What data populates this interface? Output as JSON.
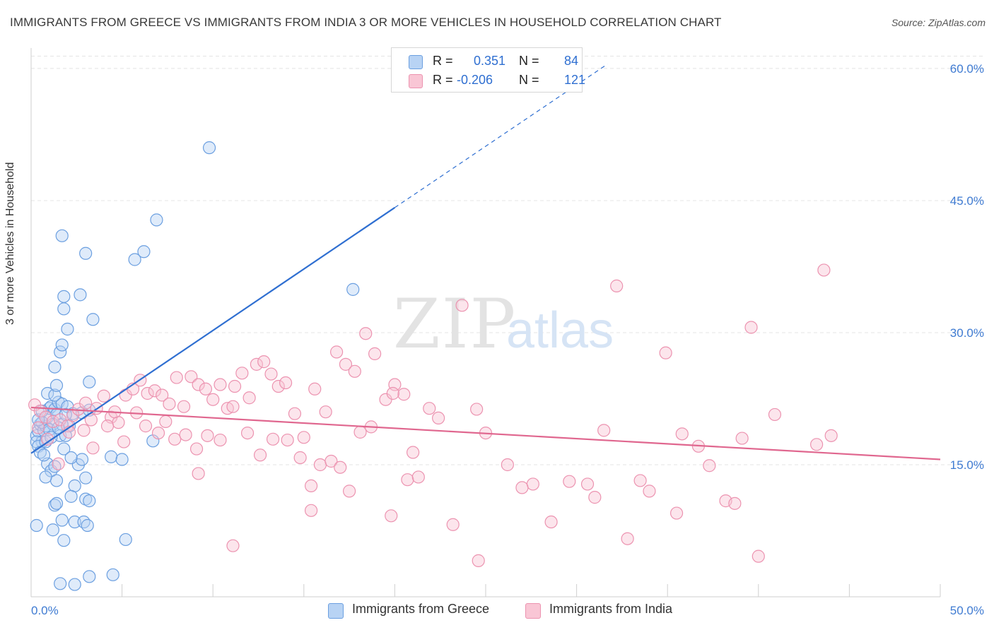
{
  "title": "IMMIGRANTS FROM GREECE VS IMMIGRANTS FROM INDIA 3 OR MORE VEHICLES IN HOUSEHOLD CORRELATION CHART",
  "source": "Source: ZipAtlas.com",
  "legend": {
    "rows": [
      {
        "r_label": "R =",
        "r_value": "0.351",
        "n_label": "N =",
        "n_value": "84"
      },
      {
        "r_label": "R =",
        "r_value": "-0.206",
        "n_label": "N =",
        "n_value": "121"
      }
    ]
  },
  "colors": {
    "greece_fill": "#b8d3f4",
    "greece_stroke": "#6b9fe0",
    "greece_line": "#2f6fd1",
    "india_fill": "#f9c6d5",
    "india_stroke": "#ec93b0",
    "india_line": "#e0678f",
    "tick_label": "#3f7bd2"
  },
  "chart_data": {
    "type": "scatter",
    "xlabel": "",
    "ylabel": "3 or more Vehicles in Household",
    "xlim": [
      0,
      50
    ],
    "ylim": [
      0,
      62
    ],
    "x_tick_labels": [
      "0.0%",
      "50.0%"
    ],
    "y_ticks": [
      15,
      30,
      45,
      60
    ],
    "y_tick_labels": [
      "15.0%",
      "30.0%",
      "45.0%",
      "60.0%"
    ],
    "grid": true,
    "legend_position": "top-center",
    "series": [
      {
        "name": "Immigrants from Greece",
        "r": 0.351,
        "n": 84,
        "trend": {
          "x0": 0.0,
          "y0": 16.3,
          "x1": 20.0,
          "y1": 44.2,
          "dash_to_x": 31.7,
          "dash_to_y": 60.5
        },
        "points": [
          [
            0.3,
            18.3
          ],
          [
            0.4,
            18.8
          ],
          [
            0.5,
            19.6
          ],
          [
            0.6,
            17.6
          ],
          [
            0.7,
            18.9
          ],
          [
            0.8,
            19.4
          ],
          [
            0.3,
            17.6
          ],
          [
            0.4,
            17.1
          ],
          [
            0.9,
            20.4
          ],
          [
            1.0,
            21.4
          ],
          [
            1.1,
            21.6
          ],
          [
            1.3,
            21.3
          ],
          [
            1.4,
            20.7
          ],
          [
            1.5,
            22.1
          ],
          [
            1.7,
            21.9
          ],
          [
            0.6,
            19.8
          ],
          [
            0.8,
            17.6
          ],
          [
            1.2,
            19.6
          ],
          [
            1.6,
            18.3
          ],
          [
            2.0,
            21.6
          ],
          [
            0.5,
            16.4
          ],
          [
            0.9,
            15.1
          ],
          [
            1.1,
            14.3
          ],
          [
            1.3,
            14.8
          ],
          [
            1.8,
            16.8
          ],
          [
            2.6,
            15.0
          ],
          [
            2.8,
            15.6
          ],
          [
            3.0,
            13.5
          ],
          [
            1.4,
            13.2
          ],
          [
            0.8,
            13.6
          ],
          [
            2.3,
            20.8
          ],
          [
            2.1,
            19.4
          ],
          [
            1.7,
            19.6
          ],
          [
            1.9,
            18.3
          ],
          [
            2.8,
            20.9
          ],
          [
            3.2,
            21.2
          ],
          [
            0.9,
            23.1
          ],
          [
            1.3,
            22.9
          ],
          [
            1.4,
            24.0
          ],
          [
            1.3,
            26.1
          ],
          [
            1.6,
            27.8
          ],
          [
            1.7,
            28.6
          ],
          [
            2.0,
            30.4
          ],
          [
            1.8,
            32.7
          ],
          [
            1.8,
            34.1
          ],
          [
            2.7,
            34.3
          ],
          [
            3.4,
            31.5
          ],
          [
            3.0,
            39.0
          ],
          [
            1.7,
            41.0
          ],
          [
            5.7,
            38.3
          ],
          [
            6.2,
            39.2
          ],
          [
            6.9,
            42.8
          ],
          [
            9.8,
            51.0
          ],
          [
            17.7,
            34.9
          ],
          [
            3.2,
            24.4
          ],
          [
            4.4,
            15.9
          ],
          [
            5.0,
            15.6
          ],
          [
            6.7,
            17.7
          ],
          [
            2.4,
            12.6
          ],
          [
            2.2,
            11.4
          ],
          [
            3.0,
            11.1
          ],
          [
            3.2,
            10.9
          ],
          [
            1.3,
            10.4
          ],
          [
            1.4,
            10.6
          ],
          [
            1.7,
            8.7
          ],
          [
            2.4,
            8.5
          ],
          [
            2.9,
            8.5
          ],
          [
            3.1,
            8.1
          ],
          [
            0.3,
            8.1
          ],
          [
            1.2,
            7.6
          ],
          [
            1.8,
            6.4
          ],
          [
            5.2,
            6.5
          ],
          [
            2.4,
            1.4
          ],
          [
            3.2,
            2.3
          ],
          [
            4.5,
            2.5
          ],
          [
            1.6,
            1.5
          ],
          [
            0.4,
            20.1
          ],
          [
            0.6,
            21.1
          ],
          [
            1.0,
            19.0
          ],
          [
            1.5,
            19.2
          ],
          [
            2.2,
            15.8
          ],
          [
            0.7,
            16.1
          ],
          [
            1.9,
            20.7
          ],
          [
            1.1,
            18.1
          ]
        ]
      },
      {
        "name": "Immigrants from India",
        "r": -0.206,
        "n": 121,
        "trend": {
          "x0": 0.0,
          "y0": 21.5,
          "x1": 50.0,
          "y1": 15.6
        },
        "points": [
          [
            0.2,
            21.8
          ],
          [
            0.5,
            21.1
          ],
          [
            0.8,
            20.4
          ],
          [
            1.2,
            19.9
          ],
          [
            1.6,
            20.1
          ],
          [
            2.0,
            19.4
          ],
          [
            2.3,
            20.6
          ],
          [
            2.6,
            21.3
          ],
          [
            3.0,
            22.0
          ],
          [
            3.3,
            20.1
          ],
          [
            3.6,
            21.4
          ],
          [
            4.0,
            22.8
          ],
          [
            4.4,
            20.4
          ],
          [
            4.8,
            19.8
          ],
          [
            5.2,
            22.9
          ],
          [
            5.6,
            23.6
          ],
          [
            6.0,
            24.6
          ],
          [
            6.4,
            23.1
          ],
          [
            6.8,
            23.4
          ],
          [
            7.2,
            22.9
          ],
          [
            7.6,
            21.9
          ],
          [
            8.0,
            24.9
          ],
          [
            8.4,
            21.6
          ],
          [
            8.8,
            25.0
          ],
          [
            9.2,
            24.1
          ],
          [
            9.6,
            23.6
          ],
          [
            10.0,
            22.4
          ],
          [
            10.4,
            24.1
          ],
          [
            10.8,
            21.4
          ],
          [
            11.2,
            23.9
          ],
          [
            11.6,
            25.4
          ],
          [
            12.0,
            22.6
          ],
          [
            12.4,
            26.4
          ],
          [
            12.8,
            26.7
          ],
          [
            13.2,
            25.3
          ],
          [
            13.6,
            23.9
          ],
          [
            14.0,
            24.3
          ],
          [
            14.5,
            20.8
          ],
          [
            15.0,
            18.1
          ],
          [
            15.6,
            23.6
          ],
          [
            16.2,
            21.0
          ],
          [
            16.8,
            27.8
          ],
          [
            17.3,
            26.4
          ],
          [
            17.8,
            25.6
          ],
          [
            18.4,
            29.9
          ],
          [
            18.9,
            27.6
          ],
          [
            19.5,
            22.4
          ],
          [
            20.0,
            24.1
          ],
          [
            20.5,
            23.0
          ],
          [
            21.0,
            16.4
          ],
          [
            21.9,
            21.4
          ],
          [
            22.4,
            20.3
          ],
          [
            23.7,
            33.1
          ],
          [
            24.5,
            21.3
          ],
          [
            25.0,
            18.6
          ],
          [
            26.2,
            15.0
          ],
          [
            27.6,
            12.8
          ],
          [
            29.6,
            13.1
          ],
          [
            30.6,
            12.8
          ],
          [
            31.5,
            18.9
          ],
          [
            32.2,
            35.3
          ],
          [
            32.8,
            6.6
          ],
          [
            33.5,
            13.2
          ],
          [
            34.0,
            12.0
          ],
          [
            34.9,
            27.7
          ],
          [
            35.8,
            18.5
          ],
          [
            36.7,
            17.1
          ],
          [
            37.3,
            14.9
          ],
          [
            38.2,
            10.9
          ],
          [
            38.7,
            10.6
          ],
          [
            39.1,
            18.0
          ],
          [
            39.6,
            30.6
          ],
          [
            40.0,
            4.6
          ],
          [
            40.9,
            20.7
          ],
          [
            43.2,
            17.3
          ],
          [
            44.0,
            18.3
          ],
          [
            43.6,
            37.1
          ],
          [
            0.9,
            17.9
          ],
          [
            1.5,
            15.1
          ],
          [
            2.1,
            18.7
          ],
          [
            2.9,
            18.9
          ],
          [
            3.4,
            16.9
          ],
          [
            4.2,
            19.4
          ],
          [
            4.6,
            21.0
          ],
          [
            5.1,
            17.6
          ],
          [
            5.8,
            20.9
          ],
          [
            6.3,
            19.4
          ],
          [
            7.0,
            18.6
          ],
          [
            7.4,
            19.9
          ],
          [
            7.9,
            17.9
          ],
          [
            8.5,
            18.4
          ],
          [
            9.1,
            16.8
          ],
          [
            9.7,
            18.3
          ],
          [
            10.4,
            17.8
          ],
          [
            11.1,
            21.6
          ],
          [
            11.9,
            18.6
          ],
          [
            12.6,
            16.1
          ],
          [
            13.3,
            17.9
          ],
          [
            14.1,
            17.8
          ],
          [
            14.8,
            15.8
          ],
          [
            15.4,
            12.6
          ],
          [
            15.9,
            15.0
          ],
          [
            16.5,
            15.4
          ],
          [
            17.0,
            14.7
          ],
          [
            17.5,
            12.0
          ],
          [
            18.1,
            18.7
          ],
          [
            18.7,
            19.3
          ],
          [
            19.8,
            9.2
          ],
          [
            20.7,
            13.3
          ],
          [
            21.3,
            13.6
          ],
          [
            23.2,
            8.2
          ],
          [
            24.6,
            4.1
          ],
          [
            27.0,
            12.4
          ],
          [
            28.6,
            8.5
          ],
          [
            31.0,
            11.3
          ],
          [
            35.5,
            9.5
          ],
          [
            9.2,
            14.0
          ],
          [
            11.1,
            5.8
          ],
          [
            15.4,
            9.8
          ],
          [
            19.9,
            23.1
          ],
          [
            0.4,
            19.2
          ]
        ]
      }
    ]
  },
  "bottom_legend": [
    "Immigrants from Greece",
    "Immigrants from India"
  ],
  "watermark": "ZIPatlas"
}
